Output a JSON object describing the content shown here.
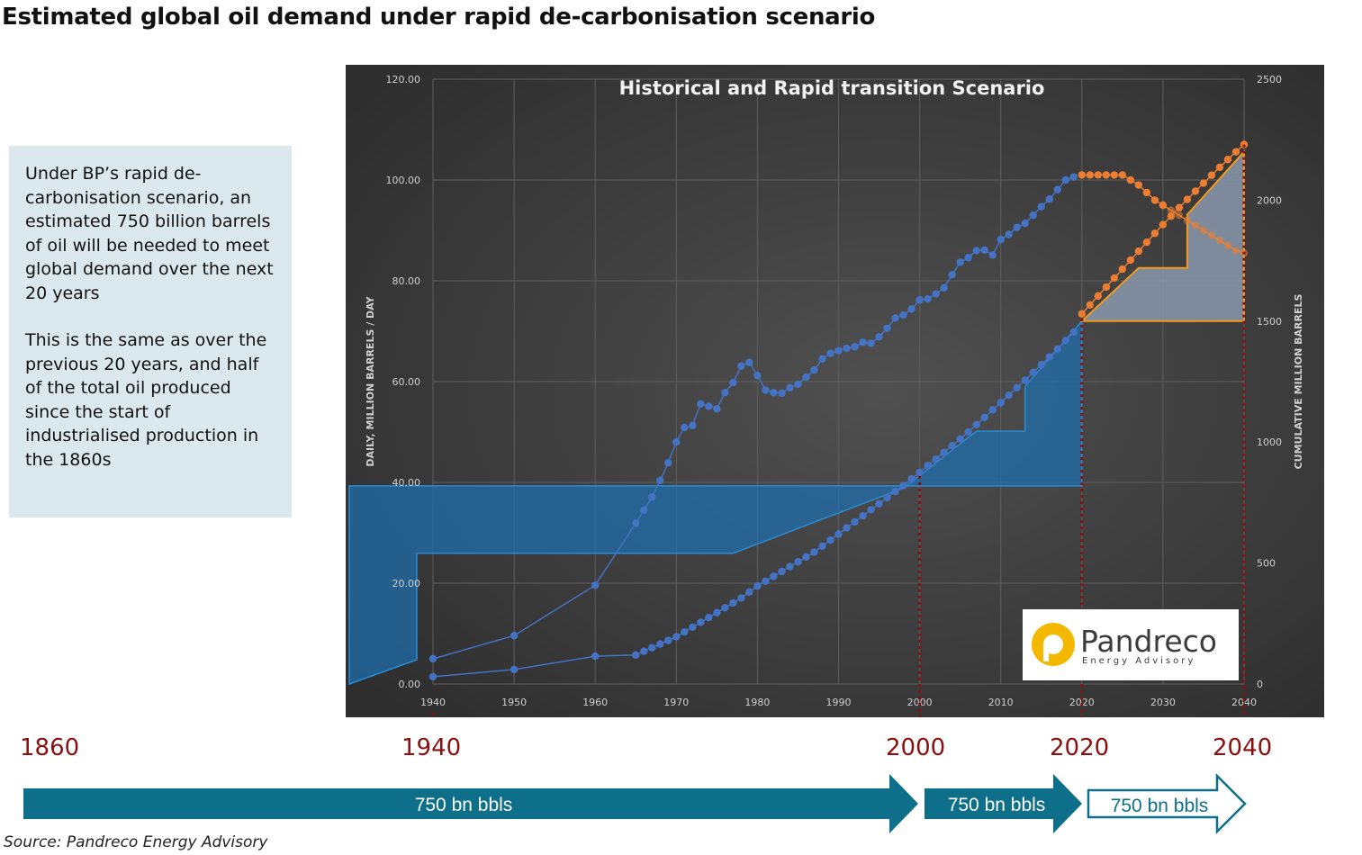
{
  "page": {
    "title": "Estimated global oil demand under rapid de-carbonisation scenario",
    "source": "Source: Pandreco Energy Advisory"
  },
  "callout": {
    "paragraph1": "Under BP’s rapid de-carbonisation scenario, an estimated 750 billion barrels of oil will be needed to meet global demand over the next 20 years",
    "paragraph2": "This is the same as over the previous 20 years, and half of the total oil produced since the start of industrialised production in the 1860s"
  },
  "timeline": {
    "years": [
      "1860",
      "1940",
      "2000",
      "2020",
      "2040"
    ],
    "arrows": [
      "750 bn bbls",
      "750 bn bbls",
      "750 bn bbls"
    ]
  },
  "logo": {
    "name": "Pandreco",
    "tagline": "Energy Advisory"
  },
  "colors": {
    "background": "#3d3d3d",
    "historical": "#4472c4",
    "scenario": "#ed7d31",
    "area_historical": "#1f6fae",
    "area_scenario": "#8a99ad",
    "timeline_year": "#8b0f0f",
    "arrow": "#0e6f8a"
  },
  "chart_data": {
    "type": "line",
    "title": "Historical and Rapid transition Scenario",
    "ylabel": "DAILY, MILLION BARRELS / DAY",
    "y2label": "CUMULATIVE MILLION BARRELS",
    "xlim": [
      1940,
      2040
    ],
    "ylim": [
      0,
      120
    ],
    "y2lim": [
      0,
      2500
    ],
    "x_ticks": [
      1940,
      1950,
      1960,
      1970,
      1980,
      1990,
      2000,
      2010,
      2020,
      2030,
      2040
    ],
    "y_ticks": [
      "0.00",
      "20.00",
      "40.00",
      "60.00",
      "80.00",
      "100.00",
      "120.00"
    ],
    "y2_ticks": [
      "0",
      "500",
      "1000",
      "1500",
      "2000",
      "2500"
    ],
    "grid": true,
    "series": [
      {
        "role": "historical daily demand",
        "axis": "left",
        "x": [
          1940,
          1950,
          1960,
          1965,
          1966,
          1967,
          1968,
          1969,
          1970,
          1971,
          1972,
          1973,
          1974,
          1975,
          1976,
          1977,
          1978,
          1979,
          1980,
          1981,
          1982,
          1983,
          1984,
          1985,
          1986,
          1987,
          1988,
          1989,
          1990,
          1991,
          1992,
          1993,
          1994,
          1995,
          1996,
          1997,
          1998,
          1999,
          2000,
          2001,
          2002,
          2003,
          2004,
          2005,
          2006,
          2007,
          2008,
          2009,
          2010,
          2011,
          2012,
          2013,
          2014,
          2015,
          2016,
          2017,
          2018,
          2019
        ],
        "values": [
          5.0,
          9.6,
          19.6,
          31.9,
          34.5,
          37.1,
          40.4,
          43.9,
          48.0,
          50.9,
          51.3,
          55.6,
          55.1,
          54.6,
          57.8,
          59.8,
          63.1,
          63.8,
          61.2,
          58.3,
          57.8,
          57.7,
          58.8,
          59.5,
          60.9,
          62.3,
          64.5,
          65.6,
          66.1,
          66.6,
          66.9,
          67.8,
          67.6,
          68.9,
          70.6,
          72.6,
          73.2,
          74.4,
          76.2,
          76.4,
          77.4,
          78.6,
          81.2,
          83.7,
          84.6,
          86.0,
          86.1,
          85.1,
          88.2,
          89.2,
          90.6,
          91.4,
          93.0,
          94.7,
          96.2,
          98.1,
          100.0,
          100.6
        ]
      },
      {
        "role": "rapid transition daily demand",
        "axis": "left",
        "x": [
          2020,
          2021,
          2022,
          2023,
          2024,
          2025,
          2026,
          2027,
          2028,
          2029,
          2030,
          2031,
          2032,
          2033,
          2034,
          2035,
          2036,
          2037,
          2038,
          2039,
          2040
        ],
        "values": [
          101.0,
          101.0,
          101.0,
          101.0,
          101.0,
          101.0,
          100.0,
          99.0,
          97.5,
          96.0,
          95.0,
          94.0,
          93.0,
          92.0,
          91.0,
          90.0,
          89.0,
          88.0,
          87.0,
          86.0,
          85.5
        ]
      },
      {
        "role": "historical cumulative",
        "axis": "right",
        "x": [
          1940,
          1950,
          1960,
          1965,
          1966,
          1967,
          1968,
          1969,
          1970,
          1971,
          1972,
          1973,
          1974,
          1975,
          1976,
          1977,
          1978,
          1979,
          1980,
          1981,
          1982,
          1983,
          1984,
          1985,
          1986,
          1987,
          1988,
          1989,
          1990,
          1991,
          1992,
          1993,
          1994,
          1995,
          1996,
          1997,
          1998,
          1999,
          2000,
          2001,
          2002,
          2003,
          2004,
          2005,
          2006,
          2007,
          2008,
          2009,
          2010,
          2011,
          2012,
          2013,
          2014,
          2015,
          2016,
          2017,
          2018,
          2019
        ],
        "values": [
          30,
          60,
          115,
          120,
          135,
          150,
          165,
          180,
          195,
          215,
          235,
          255,
          275,
          295,
          315,
          335,
          355,
          380,
          405,
          425,
          445,
          465,
          485,
          505,
          525,
          545,
          570,
          595,
          620,
          645,
          670,
          695,
          720,
          745,
          770,
          795,
          820,
          848,
          875,
          903,
          930,
          957,
          985,
          1013,
          1042,
          1072,
          1102,
          1133,
          1163,
          1194,
          1225,
          1256,
          1288,
          1320,
          1352,
          1385,
          1420,
          1455
        ]
      },
      {
        "role": "rapid transition cumulative",
        "axis": "right",
        "x": [
          2020,
          2021,
          2022,
          2023,
          2024,
          2025,
          2026,
          2027,
          2028,
          2029,
          2030,
          2031,
          2032,
          2033,
          2034,
          2035,
          2036,
          2037,
          2038,
          2039,
          2040
        ],
        "values": [
          1530,
          1567,
          1604,
          1641,
          1678,
          1715,
          1752,
          1789,
          1826,
          1863,
          1899,
          1934,
          1969,
          2003,
          2037,
          2070,
          2103,
          2136,
          2168,
          2200,
          2230
        ]
      }
    ]
  }
}
